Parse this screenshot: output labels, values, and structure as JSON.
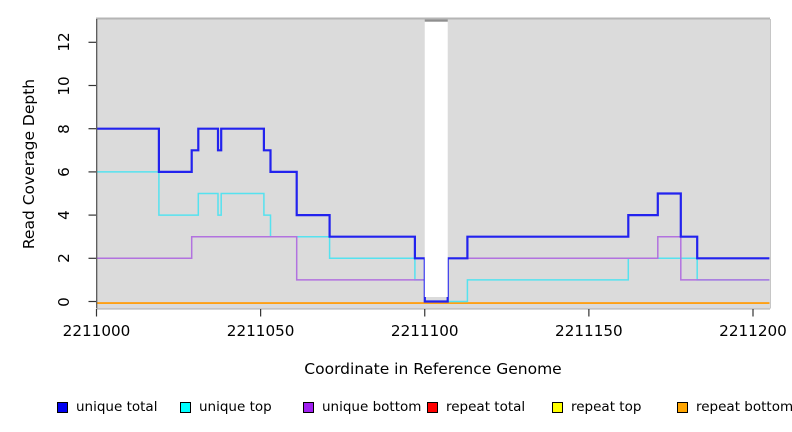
{
  "axes": {
    "xlabel": "Coordinate in Reference Genome",
    "ylabel": "Read Coverage Depth",
    "x_ticks": [
      2211000,
      2211050,
      2211100,
      2211150,
      2211200
    ],
    "y_ticks": [
      0,
      2,
      4,
      6,
      8,
      10,
      12
    ]
  },
  "chart_data": {
    "type": "line",
    "step": true,
    "title": "",
    "xlabel": "Coordinate in Reference Genome",
    "ylabel": "Read Coverage Depth",
    "xlim": [
      2211000,
      2211205
    ],
    "ylim": [
      0,
      13.1
    ],
    "grid": false,
    "panel_background": "#DBDBDB",
    "gap_region": {
      "x_start": 2211100,
      "x_end": 2211107,
      "fill": "#FFFFFF"
    },
    "series": [
      {
        "name": "unique total",
        "group": "unique",
        "z": 5,
        "legend_color": "#0000F0",
        "line_color": "#2222EE",
        "line_width": 2.2,
        "steps": [
          [
            2211000,
            8
          ],
          [
            2211019,
            6
          ],
          [
            2211029,
            7
          ],
          [
            2211031,
            8
          ],
          [
            2211037,
            7
          ],
          [
            2211038,
            8
          ],
          [
            2211051,
            7
          ],
          [
            2211053,
            6
          ],
          [
            2211061,
            4
          ],
          [
            2211071,
            3
          ],
          [
            2211097,
            2
          ],
          [
            2211100,
            0
          ],
          [
            2211107,
            2
          ],
          [
            2211113,
            3
          ],
          [
            2211162,
            4
          ],
          [
            2211171,
            5
          ],
          [
            2211178,
            3
          ],
          [
            2211183,
            2
          ],
          [
            2211205,
            2
          ]
        ]
      },
      {
        "name": "unique top",
        "group": "unique",
        "z": 3,
        "legend_color": "#00FFFF",
        "line_color": "#55E2EF",
        "line_width": 1.5,
        "steps": [
          [
            2211000,
            6
          ],
          [
            2211019,
            4
          ],
          [
            2211031,
            5
          ],
          [
            2211037,
            4
          ],
          [
            2211038,
            5
          ],
          [
            2211051,
            4
          ],
          [
            2211053,
            3
          ],
          [
            2211071,
            2
          ],
          [
            2211097,
            1
          ],
          [
            2211100,
            0
          ],
          [
            2211113,
            1
          ],
          [
            2211162,
            2
          ],
          [
            2211183,
            1
          ],
          [
            2211205,
            1
          ]
        ]
      },
      {
        "name": "unique bottom",
        "group": "unique",
        "z": 4,
        "legend_color": "#A020F0",
        "line_color": "#B272DF",
        "line_width": 1.5,
        "steps": [
          [
            2211000,
            2
          ],
          [
            2211029,
            3
          ],
          [
            2211061,
            1
          ],
          [
            2211100,
            0
          ],
          [
            2211107,
            2
          ],
          [
            2211171,
            3
          ],
          [
            2211178,
            1
          ],
          [
            2211205,
            1
          ]
        ]
      },
      {
        "name": "repeat total",
        "group": "repeat",
        "z": 0,
        "legend_color": "#FF0000",
        "line_color": "#FF0000",
        "line_width": 1.4,
        "steps": [
          [
            2211000,
            0
          ],
          [
            2211205,
            0
          ]
        ]
      },
      {
        "name": "repeat top",
        "group": "repeat",
        "z": 1,
        "legend_color": "#FFFF00",
        "line_color": "#FFFF00",
        "line_width": 1.4,
        "steps": [
          [
            2211000,
            0
          ],
          [
            2211205,
            0
          ]
        ]
      },
      {
        "name": "repeat bottom",
        "group": "repeat",
        "z": 2,
        "legend_color": "#FFA500",
        "line_color": "#FFA012",
        "line_width": 1.8,
        "steps": [
          [
            2211000,
            0
          ],
          [
            2211205,
            0
          ]
        ]
      }
    ]
  },
  "legend": {
    "items": [
      {
        "label": "unique total",
        "color": "#0000F0"
      },
      {
        "label": "unique top",
        "color": "#00FFFF"
      },
      {
        "label": "unique bottom",
        "color": "#A020F0"
      },
      {
        "label": "repeat total",
        "color": "#FF0000"
      },
      {
        "label": "repeat top",
        "color": "#FFFF00"
      },
      {
        "label": "repeat bottom",
        "color": "#FFA500"
      }
    ]
  }
}
